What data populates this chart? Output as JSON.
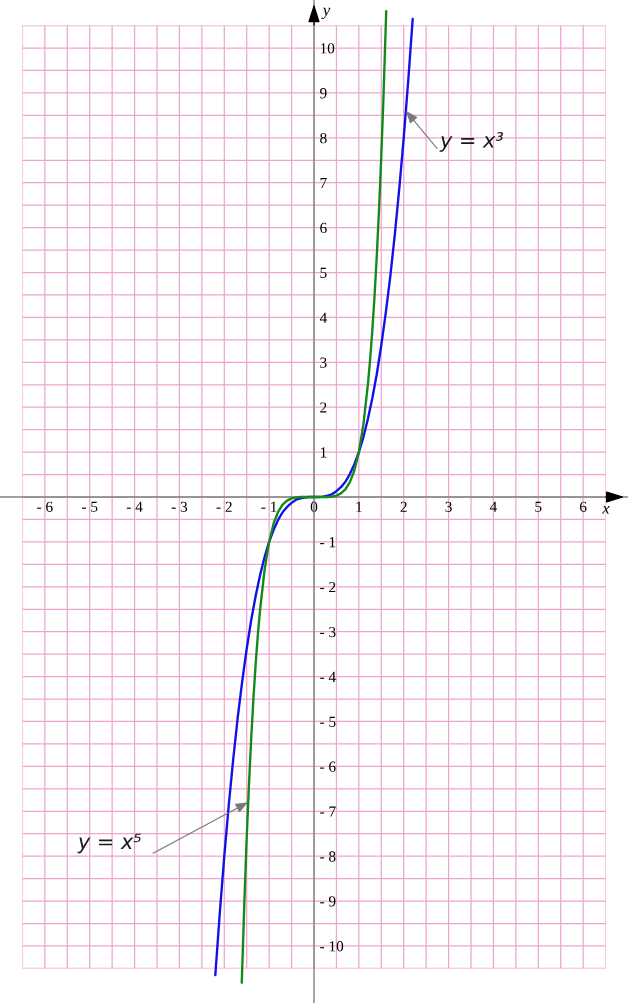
{
  "chart_data": {
    "type": "line",
    "xlabel": "x",
    "ylabel": "y",
    "xlim": [
      -7,
      7
    ],
    "ylim": [
      -11.27,
      11.07
    ],
    "xticks": [
      {
        "value": -6.5,
        "label": null
      },
      {
        "value": -6,
        "label": "- 6"
      },
      {
        "value": -5.5,
        "label": null
      },
      {
        "value": -5,
        "label": "- 5"
      },
      {
        "value": -4.5,
        "label": null
      },
      {
        "value": -4,
        "label": "- 4"
      },
      {
        "value": -3.5,
        "label": null
      },
      {
        "value": -3,
        "label": "- 3"
      },
      {
        "value": -2.5,
        "label": null
      },
      {
        "value": -2,
        "label": "- 2"
      },
      {
        "value": -1.5,
        "label": null
      },
      {
        "value": -1,
        "label": "- 1"
      },
      {
        "value": -0.5,
        "label": null
      },
      0,
      {
        "value": 0.5,
        "label": null
      },
      1,
      {
        "value": 1.5,
        "label": null
      },
      2,
      {
        "value": 2.5,
        "label": null
      },
      3,
      {
        "value": 3.5,
        "label": null
      },
      4,
      {
        "value": 4.5,
        "label": null
      },
      5,
      {
        "value": 5.5,
        "label": null
      },
      6,
      {
        "value": 6.5,
        "label": null
      }
    ],
    "yticks": [
      {
        "value": -10.5,
        "label": null
      },
      {
        "value": -10,
        "label": "- 10"
      },
      {
        "value": -9.5,
        "label": null
      },
      {
        "value": -9,
        "label": "- 9"
      },
      {
        "value": -8.5,
        "label": null
      },
      {
        "value": -8,
        "label": "- 8"
      },
      {
        "value": -7.5,
        "label": null
      },
      {
        "value": -7,
        "label": "- 7"
      },
      {
        "value": -6.5,
        "label": null
      },
      {
        "value": -6,
        "label": "- 6"
      },
      {
        "value": -5.5,
        "label": null
      },
      {
        "value": -5,
        "label": "- 5"
      },
      {
        "value": -4.5,
        "label": null
      },
      {
        "value": -4,
        "label": "- 4"
      },
      {
        "value": -3.5,
        "label": null
      },
      {
        "value": -3,
        "label": "- 3"
      },
      {
        "value": -2.5,
        "label": null
      },
      {
        "value": -2,
        "label": "- 2"
      },
      {
        "value": -1.5,
        "label": null
      },
      {
        "value": -1,
        "label": "- 1"
      },
      {
        "value": -0.5,
        "label": null
      },
      {
        "value": 0,
        "label": null
      },
      {
        "value": 0.5,
        "label": null
      },
      1,
      {
        "value": 1.5,
        "label": null
      },
      2,
      {
        "value": 2.5,
        "label": null
      },
      3,
      {
        "value": 3.5,
        "label": null
      },
      4,
      {
        "value": 4.5,
        "label": null
      },
      5,
      {
        "value": 5.5,
        "label": null
      },
      6,
      {
        "value": 6.5,
        "label": null
      },
      7,
      {
        "value": 7.5,
        "label": null
      },
      8,
      {
        "value": 8.5,
        "label": null
      },
      9,
      {
        "value": 9.5,
        "label": null
      },
      10,
      {
        "value": 10.5,
        "label": null
      }
    ],
    "grid": true,
    "series": [
      {
        "color": "#1010e8",
        "x": [
          -2.2,
          -2.1,
          -2.0,
          -1.9,
          -1.8,
          -1.7,
          -1.6,
          -1.5,
          -1.4,
          -1.3,
          -1.2,
          -1.1,
          -1.0,
          -0.9,
          -0.8,
          -0.7,
          -0.6,
          -0.5,
          -0.4,
          -0.3,
          -0.2,
          -0.1,
          0,
          0.1,
          0.2,
          0.3,
          0.4,
          0.5,
          0.6,
          0.7,
          0.8,
          0.9,
          1.0,
          1.1,
          1.2,
          1.3,
          1.4,
          1.5,
          1.6,
          1.7,
          1.8,
          1.9,
          2.0,
          2.1,
          2.2
        ],
        "values": [
          -10.65,
          -9.26,
          -8,
          -6.86,
          -5.83,
          -4.91,
          -4.1,
          -3.38,
          -2.74,
          -2.2,
          -1.73,
          -1.33,
          -1,
          -0.73,
          -0.51,
          -0.34,
          -0.22,
          -0.13,
          -0.06,
          -0.03,
          -0.01,
          0,
          0,
          0,
          0.01,
          0.03,
          0.06,
          0.13,
          0.22,
          0.34,
          0.51,
          0.73,
          1,
          1.33,
          1.73,
          2.2,
          2.74,
          3.38,
          4.1,
          4.91,
          5.83,
          6.86,
          8,
          9.26,
          10.65
        ]
      },
      {
        "color": "#12891a",
        "x": [
          -1.61,
          -1.55,
          -1.5,
          -1.45,
          -1.4,
          -1.35,
          -1.3,
          -1.25,
          -1.2,
          -1.1,
          -1.0,
          -0.9,
          -0.8,
          -0.7,
          -0.6,
          -0.5,
          -0.4,
          -0.3,
          -0.2,
          0,
          0.2,
          0.3,
          0.4,
          0.5,
          0.6,
          0.7,
          0.8,
          0.9,
          1.0,
          1.1,
          1.2,
          1.25,
          1.3,
          1.35,
          1.4,
          1.45,
          1.5,
          1.55,
          1.61
        ],
        "values": [
          -10.82,
          -8.95,
          -7.59,
          -6.41,
          -5.38,
          -4.48,
          -3.71,
          -3.05,
          -2.49,
          -1.61,
          -1,
          -0.59,
          -0.33,
          -0.17,
          -0.08,
          -0.03,
          -0.01,
          0,
          0,
          0,
          0,
          0,
          0.01,
          0.03,
          0.08,
          0.17,
          0.33,
          0.59,
          1,
          1.61,
          2.49,
          3.05,
          3.71,
          4.48,
          5.38,
          6.41,
          7.59,
          8.95,
          10.82
        ]
      }
    ],
    "annotations": [
      {
        "text": "y = x³",
        "x": 2.05,
        "y": 8.6
      },
      {
        "text": "y = x⁵",
        "x": -1.47,
        "y": -6.8
      }
    ]
  }
}
